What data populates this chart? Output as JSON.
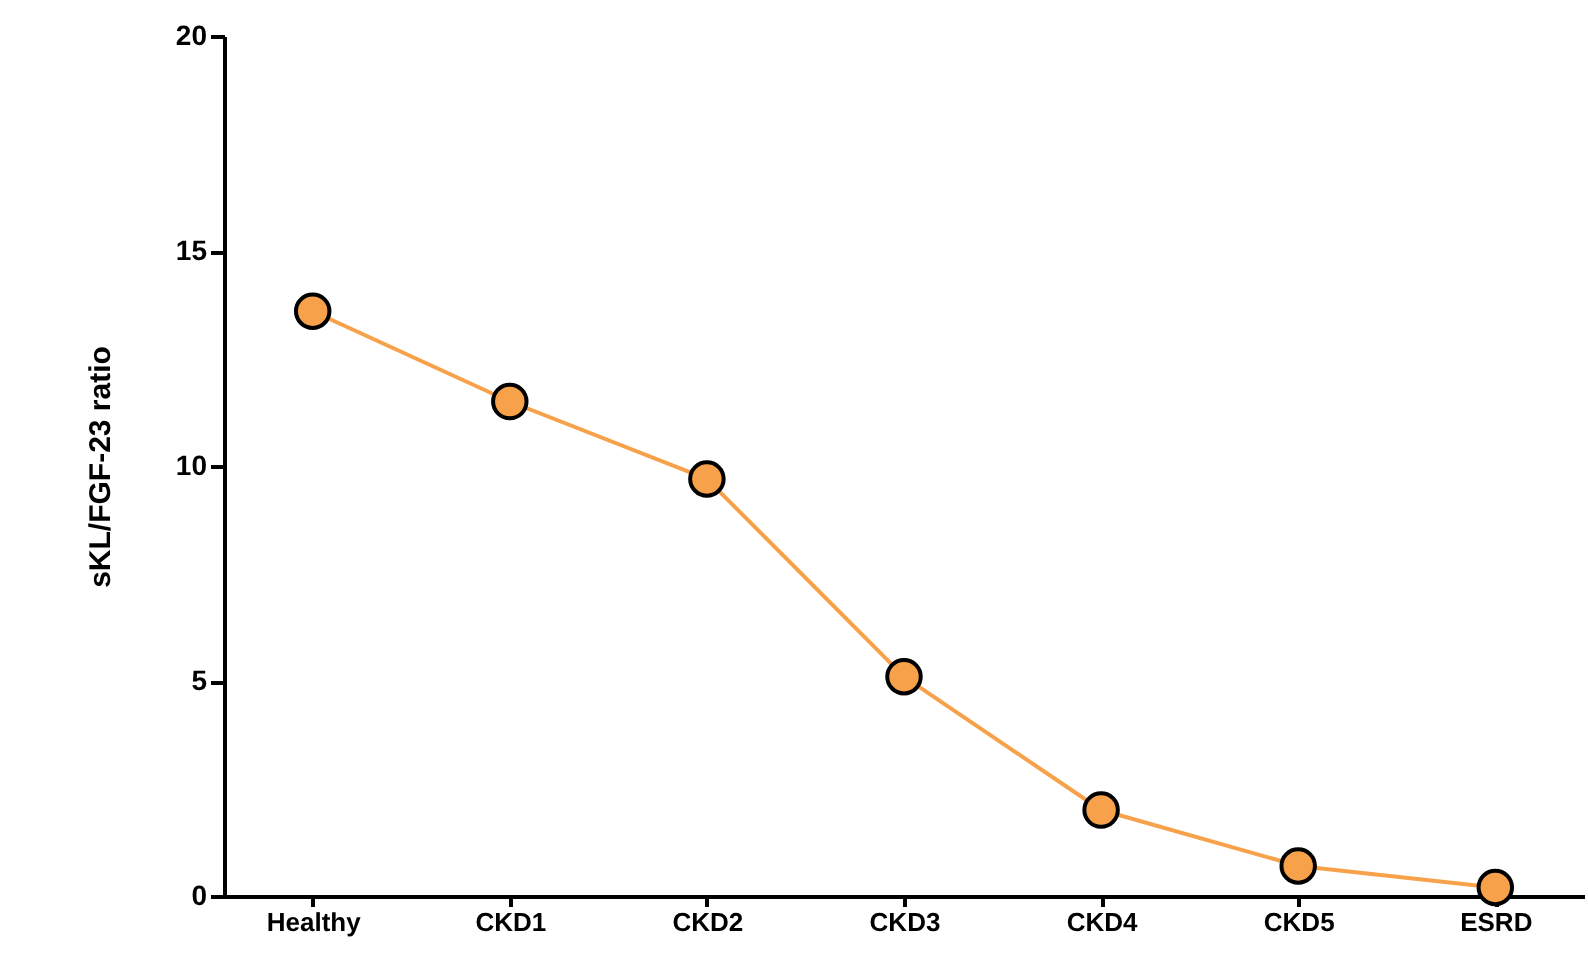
{
  "chart_data": {
    "type": "line",
    "ylabel": "sKL/FGF-23 ratio",
    "categories": [
      "Healthy",
      "CKD1",
      "CKD2",
      "CKD3",
      "CKD4",
      "CKD5",
      "ESRD"
    ],
    "series": [
      {
        "color": "#f7a24a",
        "values": [
          13.6,
          11.5,
          9.7,
          5.1,
          2.0,
          0.7,
          0.2
        ]
      }
    ],
    "ylim": [
      0,
      20
    ],
    "yticks": [
      0,
      5,
      10,
      15,
      20
    ],
    "grid": false,
    "marker": "circle",
    "line_style": "solid"
  }
}
